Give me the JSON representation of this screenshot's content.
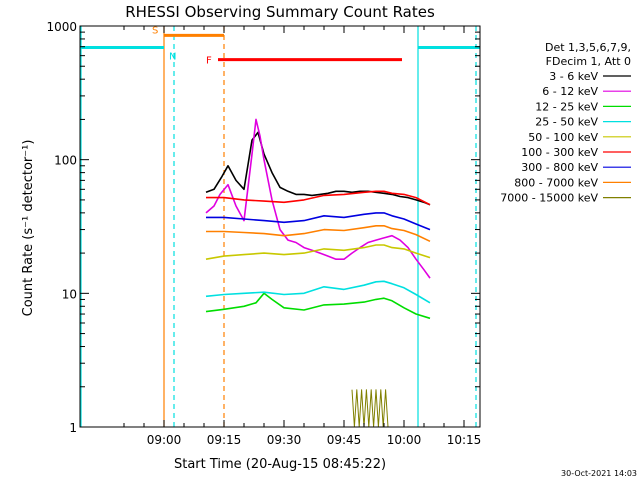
{
  "chart_data": {
    "type": "line",
    "title": "RHESSI Observing Summary Count Rates",
    "xlabel": "Start Time (20-Aug-15 08:45:22)",
    "ylabel": "Count Rate (s⁻¹ detector⁻¹)",
    "yscale": "log",
    "ylim": [
      1,
      1000
    ],
    "xlim_minutes": [
      -6.0,
      94.0
    ],
    "x_ticks": [
      {
        "label": "09:00",
        "minute": 15.0
      },
      {
        "label": "09:15",
        "minute": 30.0
      },
      {
        "label": "09:30",
        "minute": 45.0
      },
      {
        "label": "09:45",
        "minute": 60.0
      },
      {
        "label": "10:00",
        "minute": 75.0
      },
      {
        "label": "10:15",
        "minute": 90.0
      }
    ],
    "y_ticks": [
      {
        "label": "1",
        "value": 1
      },
      {
        "label": "10",
        "value": 10
      },
      {
        "label": "100",
        "value": 100
      },
      {
        "label": "1000",
        "value": 1000
      }
    ],
    "legend_header": [
      "Det 1,3,5,6,7,9,",
      "FDecim 1, Att 0"
    ],
    "legend_position": "right",
    "series": [
      {
        "name": "3 - 6 keV",
        "color": "#000000",
        "x": [
          25.5,
          27.5,
          29.5,
          31,
          33,
          35,
          37,
          38.5,
          40,
          42,
          44,
          46,
          48,
          50,
          52,
          54,
          56,
          58,
          60,
          62,
          64,
          66,
          68,
          70,
          72,
          74,
          76,
          78,
          80,
          81.5
        ],
        "y": [
          57,
          60,
          75,
          90,
          70,
          60,
          140,
          160,
          110,
          80,
          62,
          58,
          55,
          55,
          54,
          55,
          56,
          58,
          58,
          57,
          58,
          58,
          57,
          56,
          55,
          53,
          52,
          50,
          48,
          46
        ]
      },
      {
        "name": "6 - 12 keV",
        "color": "#e000e0",
        "x": [
          25.5,
          27.5,
          29,
          31,
          33,
          35,
          37,
          38,
          39,
          40,
          42,
          44,
          46,
          48,
          50,
          52,
          54,
          56,
          58,
          60,
          62,
          64,
          66,
          68,
          70,
          72,
          74,
          76,
          78,
          80,
          81.5
        ],
        "y": [
          40,
          45,
          55,
          65,
          45,
          35,
          110,
          200,
          150,
          100,
          50,
          30,
          25,
          24,
          22,
          21,
          20,
          19,
          18,
          18,
          20,
          22,
          24,
          25,
          26,
          27,
          25,
          22,
          18,
          15,
          13
        ]
      },
      {
        "name": "12 - 25 keV",
        "color": "#00dd00",
        "x": [
          25.5,
          30,
          35,
          38,
          40,
          42,
          45,
          50,
          55,
          60,
          65,
          68,
          70,
          72,
          75,
          78,
          81.5
        ],
        "y": [
          7.3,
          7.6,
          8.0,
          8.5,
          10,
          9.0,
          7.8,
          7.5,
          8.2,
          8.3,
          8.6,
          9.0,
          9.2,
          8.8,
          7.8,
          7.0,
          6.5
        ]
      },
      {
        "name": "25 - 50 keV",
        "color": "#00e0e0",
        "x": [
          25.5,
          30,
          35,
          40,
          45,
          50,
          55,
          60,
          65,
          68,
          70,
          72,
          75,
          78,
          81.5
        ],
        "y": [
          9.5,
          9.8,
          10.0,
          10.2,
          9.8,
          10.0,
          11.2,
          10.7,
          11.5,
          12.2,
          12.3,
          11.8,
          11.0,
          9.8,
          8.5
        ]
      },
      {
        "name": "50 - 100 keV",
        "color": "#c8c800",
        "x": [
          25.5,
          30,
          35,
          40,
          45,
          50,
          55,
          60,
          65,
          68,
          70,
          72,
          75,
          78,
          81.5
        ],
        "y": [
          18,
          19,
          19.5,
          20,
          19.5,
          20,
          21.5,
          21,
          22,
          23,
          23,
          22,
          21.5,
          20,
          18.5
        ]
      },
      {
        "name": "100 - 300 keV",
        "color": "#ff0000",
        "x": [
          25.5,
          30,
          35,
          40,
          45,
          50,
          55,
          60,
          65,
          68,
          70,
          72,
          75,
          78,
          81.5
        ],
        "y": [
          52,
          52,
          50,
          49,
          48,
          50,
          54,
          55,
          57,
          58,
          58,
          56,
          55,
          52,
          46
        ]
      },
      {
        "name": "300 - 800 keV",
        "color": "#0000e0",
        "x": [
          25.5,
          30,
          35,
          40,
          45,
          50,
          55,
          60,
          65,
          68,
          70,
          72,
          75,
          78,
          81.5
        ],
        "y": [
          37,
          37,
          36,
          35,
          34,
          35,
          38,
          37,
          39,
          40,
          40,
          38,
          36,
          33,
          30
        ]
      },
      {
        "name": "800 - 7000 keV",
        "color": "#ff8000",
        "x": [
          25.5,
          30,
          35,
          40,
          45,
          50,
          55,
          60,
          65,
          68,
          70,
          72,
          75,
          78,
          81.5
        ],
        "y": [
          29,
          29,
          28.5,
          28,
          27,
          28,
          30,
          29.5,
          31,
          32,
          32,
          30.5,
          29.5,
          27.5,
          24.5
        ]
      },
      {
        "name": "7000 - 15000 keV",
        "color": "#808000",
        "x": [
          62,
          62.6,
          63.2,
          63.8,
          64.4,
          65,
          65.6,
          66.2,
          66.8,
          67.4,
          68,
          68.6,
          69.2,
          69.8,
          70.4,
          71
        ],
        "y": [
          1.9,
          1.0,
          1.9,
          1.0,
          1.9,
          1.0,
          1.9,
          1.0,
          1.9,
          1.0,
          1.9,
          1.0,
          1.9,
          1.0,
          1.9,
          1.0
        ]
      }
    ],
    "state_bars": [
      {
        "label": "S",
        "color": "#ff8000",
        "x_start": 15.0,
        "x_end": 30.0,
        "y": 850
      },
      {
        "label": "N",
        "color": "#00e0e0",
        "x_start": -6.0,
        "x_end": 15.0,
        "y": 690
      },
      {
        "label": "F",
        "color": "#ff0000",
        "x_start": 28.5,
        "x_end": 74.5,
        "y": 560
      },
      {
        "label": "",
        "color": "#00e0e0",
        "x_start": 78.5,
        "x_end": 94.0,
        "y": 690
      }
    ],
    "vertical_lines": [
      {
        "x": -6.0,
        "color": "#00e0e0",
        "style": "solid"
      },
      {
        "x": 15.0,
        "color": "#ff8000",
        "style": "solid"
      },
      {
        "x": 17.5,
        "color": "#00e0e0",
        "style": "dashed"
      },
      {
        "x": 30.0,
        "color": "#ff8000",
        "style": "dashed"
      },
      {
        "x": 78.5,
        "color": "#00e0e0",
        "style": "solid"
      },
      {
        "x": 93.0,
        "color": "#00e0e0",
        "style": "dashed"
      }
    ]
  },
  "footer_timestamp": "30-Oct-2021 14:03",
  "colors": {
    "axis": "#000000",
    "background": "#ffffff"
  }
}
